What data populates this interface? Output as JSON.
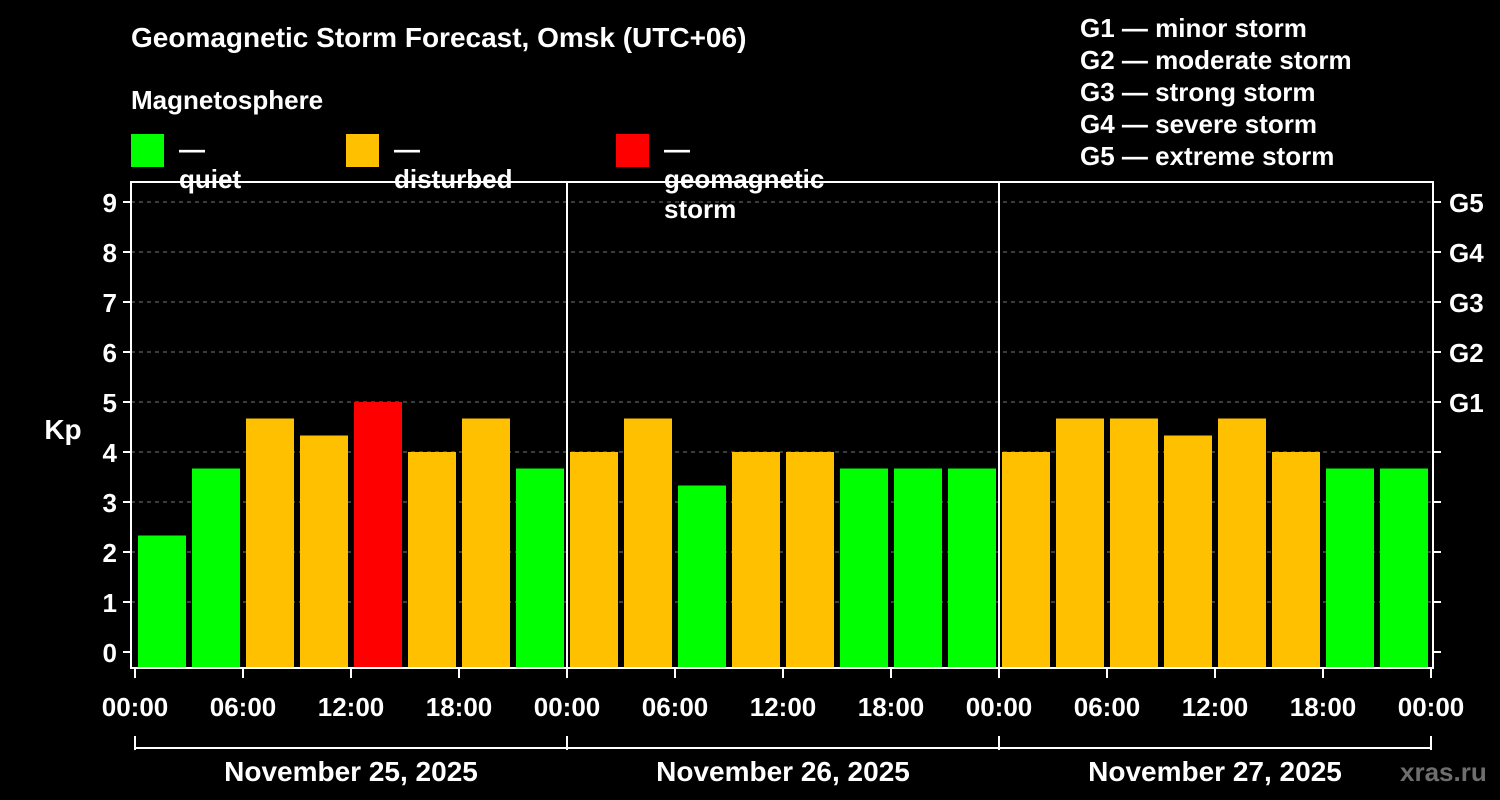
{
  "header": {
    "title": "Geomagnetic Storm Forecast, Omsk (UTC+06)",
    "subtitle": "Magnetosphere"
  },
  "legend": [
    {
      "color": "#00ff00",
      "label": "— quiet"
    },
    {
      "color": "#ffc000",
      "label": "— disturbed"
    },
    {
      "color": "#ff0000",
      "label": "— geomagnetic storm"
    }
  ],
  "storm_scale": [
    "G1 — minor storm",
    "G2 — moderate storm",
    "G3 — strong storm",
    "G4 — severe storm",
    "G5 — extreme storm"
  ],
  "watermark": "xras.ru",
  "chart_data": {
    "type": "bar",
    "ylabel": "Kp",
    "ylim": [
      0,
      9
    ],
    "yticks": [
      "0",
      "1",
      "2",
      "3",
      "4",
      "5",
      "6",
      "7",
      "8",
      "9"
    ],
    "right_ticks": [
      {
        "value": 5,
        "label": "G1"
      },
      {
        "value": 6,
        "label": "G2"
      },
      {
        "value": 7,
        "label": "G3"
      },
      {
        "value": 8,
        "label": "G4"
      },
      {
        "value": 9,
        "label": "G5"
      }
    ],
    "xtick_labels": [
      "00:00",
      "06:00",
      "12:00",
      "18:00",
      "00:00",
      "06:00",
      "12:00",
      "18:00",
      "00:00",
      "06:00",
      "12:00",
      "18:00",
      "00:00"
    ],
    "days": [
      "November 25, 2025",
      "November 26, 2025",
      "November 27, 2025"
    ],
    "grid": "horizontal dashed",
    "colors": {
      "quiet": "#00ff00",
      "disturbed": "#ffc000",
      "storm": "#ff0000"
    },
    "values": [
      2.33,
      3.67,
      4.67,
      4.33,
      5.0,
      4.0,
      4.67,
      3.67,
      4.0,
      4.67,
      3.33,
      4.0,
      4.0,
      3.67,
      3.67,
      3.67,
      4.0,
      4.67,
      4.67,
      4.33,
      4.67,
      4.0,
      3.67,
      3.67
    ],
    "levels": [
      "quiet",
      "quiet",
      "disturbed",
      "disturbed",
      "storm",
      "disturbed",
      "disturbed",
      "quiet",
      "disturbed",
      "disturbed",
      "quiet",
      "disturbed",
      "disturbed",
      "quiet",
      "quiet",
      "quiet",
      "disturbed",
      "disturbed",
      "disturbed",
      "disturbed",
      "disturbed",
      "disturbed",
      "quiet",
      "quiet"
    ]
  }
}
